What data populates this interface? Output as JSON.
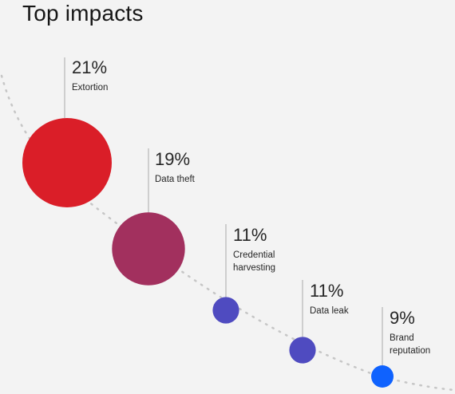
{
  "chart_data": {
    "type": "bubble",
    "title": "Top impacts",
    "categories": [
      "Extortion",
      "Data theft",
      "Credential harvesting",
      "Data leak",
      "Brand reputation"
    ],
    "value_labels": [
      "21%",
      "19%",
      "11%",
      "11%",
      "9%"
    ],
    "values": [
      21,
      19,
      11,
      11,
      9
    ],
    "label_lines": [
      [
        "Extortion"
      ],
      [
        "Data theft"
      ],
      [
        "Credential",
        "harvesting"
      ],
      [
        "Data leak"
      ],
      [
        "Brand",
        "reputation"
      ]
    ],
    "colors": [
      "#da1e28",
      "#a2305e",
      "#4f4bc0",
      "#4f4bc0",
      "#0f62fe"
    ],
    "trend_line": "dotted",
    "trend_color": "#c6c6c6"
  }
}
